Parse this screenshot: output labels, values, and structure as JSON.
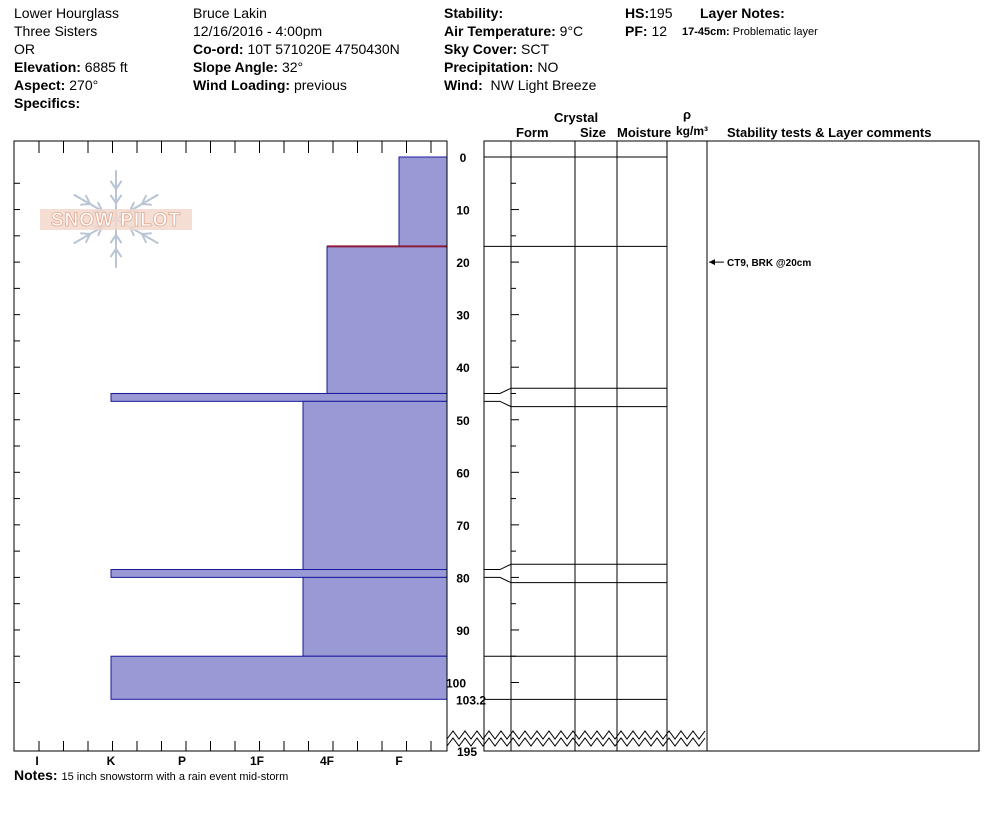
{
  "header": {
    "location": "Lower Hourglass",
    "range": "Three Sisters",
    "state": "OR",
    "elevation_label": "Elevation:",
    "elevation": "6885 ft",
    "aspect_label": "Aspect:",
    "aspect": "270°",
    "specifics_label": "Specifics:",
    "observer": "Bruce Lakin",
    "datetime": "12/16/2016 - 4:00pm",
    "coord_label": "Co-ord:",
    "coord": "10T 571020E 4750430N",
    "slope_label": "Slope Angle:",
    "slope": "32°",
    "wind_loading_label": "Wind Loading:",
    "wind_loading": "previous",
    "stability_label": "Stability:",
    "air_temp_label": "Air Temperature:",
    "air_temp": "9°C",
    "sky_label": "Sky Cover:",
    "sky": "SCT",
    "precip_label": "Precipitation:",
    "precip": "NO",
    "wind_label": "Wind:",
    "wind": "NW Light Breeze",
    "hs_label": "HS:",
    "hs": "195",
    "pf_label": "PF:",
    "pf": "12",
    "layer_notes_label": "Layer Notes:",
    "layer_note_range": "17-45cm:",
    "layer_note_text": "Problematic layer"
  },
  "logo_text": "SNOW PILOT",
  "columns": {
    "crystal": "Crystal",
    "form": "Form",
    "size": "Size",
    "moisture": "Moisture",
    "rho": "ρ",
    "density_unit": "kg/m³",
    "stability": "Stability tests & Layer comments"
  },
  "notes_label": "Notes:",
  "notes": "15 inch snowstorm with a rain event mid-storm",
  "colors": {
    "layer_fill": "#9999d6",
    "layer_edge": "#1a1a9a",
    "crust_line": "#8b1a3a"
  },
  "chart_data": {
    "type": "bar",
    "orientation": "horizontal",
    "x_categories": [
      "I",
      "K",
      "P",
      "1F",
      "4F",
      "F"
    ],
    "y_ticks": [
      0,
      10,
      20,
      30,
      40,
      50,
      60,
      70,
      80,
      90,
      100
    ],
    "y_extra_labels": [
      "103.2",
      "195"
    ],
    "ylim": [
      0,
      195
    ],
    "y_break_after": 103.2,
    "layers": [
      {
        "top": 0,
        "bottom": 17,
        "hardness": "F"
      },
      {
        "top": 17,
        "bottom": 45,
        "hardness": "4F"
      },
      {
        "top": 45,
        "bottom": 46.5,
        "hardness": "K"
      },
      {
        "top": 46.5,
        "bottom": 78.5,
        "hardness": "4F-"
      },
      {
        "top": 78.5,
        "bottom": 80,
        "hardness": "K"
      },
      {
        "top": 80,
        "bottom": 95,
        "hardness": "4F-"
      },
      {
        "top": 95,
        "bottom": 103.2,
        "hardness": "K"
      }
    ],
    "crust_at": 17,
    "profile_boundaries": [
      0,
      17,
      44,
      47.5,
      77.5,
      81,
      95,
      103.2
    ],
    "comments": [
      {
        "depth": 20,
        "text": "CT9, BRK @20cm"
      }
    ]
  }
}
